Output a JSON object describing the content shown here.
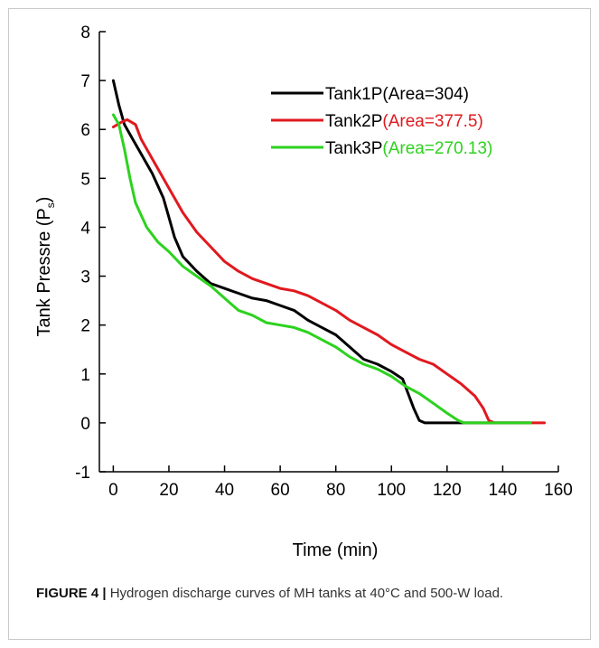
{
  "figure": {
    "caption_label": "FIGURE 4 |",
    "caption_text": "Hydrogen discharge curves of MH tanks at 40°C and 500-W load."
  },
  "chart_data": {
    "type": "line",
    "title": "",
    "xlabel": "Time (min)",
    "ylabel_main": "Tank Pressre (P",
    "ylabel_sub": "s",
    "ylabel_close": ")",
    "xlim": [
      -5,
      160
    ],
    "ylim": [
      -1,
      8
    ],
    "xticks": [
      0,
      20,
      40,
      60,
      80,
      100,
      120,
      140,
      160
    ],
    "yticks": [
      -1,
      0,
      1,
      2,
      3,
      4,
      5,
      6,
      7,
      8
    ],
    "grid": false,
    "legend_position": "top-right",
    "series": [
      {
        "name": "Tank1P",
        "area_label": "(Area=304)",
        "color": "#000000",
        "label_color": "#000000",
        "points": [
          [
            0,
            7.0
          ],
          [
            2,
            6.5
          ],
          [
            4,
            6.1
          ],
          [
            7,
            5.8
          ],
          [
            10,
            5.5
          ],
          [
            14,
            5.1
          ],
          [
            18,
            4.6
          ],
          [
            20,
            4.2
          ],
          [
            22,
            3.8
          ],
          [
            25,
            3.4
          ],
          [
            30,
            3.1
          ],
          [
            35,
            2.85
          ],
          [
            40,
            2.75
          ],
          [
            45,
            2.65
          ],
          [
            50,
            2.55
          ],
          [
            55,
            2.5
          ],
          [
            60,
            2.4
          ],
          [
            65,
            2.3
          ],
          [
            70,
            2.1
          ],
          [
            75,
            1.95
          ],
          [
            80,
            1.8
          ],
          [
            85,
            1.55
          ],
          [
            90,
            1.3
          ],
          [
            95,
            1.2
          ],
          [
            100,
            1.05
          ],
          [
            104,
            0.9
          ],
          [
            106,
            0.6
          ],
          [
            108,
            0.3
          ],
          [
            110,
            0.05
          ],
          [
            112,
            0.0
          ],
          [
            120,
            0.0
          ],
          [
            130,
            0.0
          ],
          [
            140,
            0.0
          ],
          [
            150,
            0.0
          ]
        ]
      },
      {
        "name": "Tank2P",
        "area_label": "(Area=377.5)",
        "color": "#e0191f",
        "label_color": "#e0191f",
        "points": [
          [
            0,
            6.05
          ],
          [
            3,
            6.15
          ],
          [
            5,
            6.2
          ],
          [
            8,
            6.1
          ],
          [
            10,
            5.8
          ],
          [
            15,
            5.3
          ],
          [
            20,
            4.8
          ],
          [
            25,
            4.3
          ],
          [
            30,
            3.9
          ],
          [
            35,
            3.6
          ],
          [
            40,
            3.3
          ],
          [
            45,
            3.1
          ],
          [
            50,
            2.95
          ],
          [
            55,
            2.85
          ],
          [
            60,
            2.75
          ],
          [
            65,
            2.7
          ],
          [
            70,
            2.6
          ],
          [
            75,
            2.45
          ],
          [
            80,
            2.3
          ],
          [
            85,
            2.1
          ],
          [
            90,
            1.95
          ],
          [
            95,
            1.8
          ],
          [
            100,
            1.6
          ],
          [
            105,
            1.45
          ],
          [
            110,
            1.3
          ],
          [
            115,
            1.2
          ],
          [
            120,
            1.0
          ],
          [
            125,
            0.8
          ],
          [
            130,
            0.55
          ],
          [
            133,
            0.3
          ],
          [
            135,
            0.05
          ],
          [
            137,
            0.0
          ],
          [
            145,
            0.0
          ],
          [
            150,
            0.0
          ],
          [
            155,
            0.0
          ]
        ]
      },
      {
        "name": "Tank3P",
        "area_label": "(Area=270.13)",
        "color": "#2dd21e",
        "label_color": "#2dd21e",
        "points": [
          [
            0,
            6.3
          ],
          [
            2,
            6.1
          ],
          [
            4,
            5.6
          ],
          [
            6,
            5.0
          ],
          [
            8,
            4.5
          ],
          [
            12,
            4.0
          ],
          [
            16,
            3.7
          ],
          [
            20,
            3.5
          ],
          [
            25,
            3.2
          ],
          [
            30,
            3.0
          ],
          [
            35,
            2.8
          ],
          [
            40,
            2.55
          ],
          [
            45,
            2.3
          ],
          [
            50,
            2.2
          ],
          [
            55,
            2.05
          ],
          [
            60,
            2.0
          ],
          [
            65,
            1.95
          ],
          [
            70,
            1.85
          ],
          [
            75,
            1.7
          ],
          [
            80,
            1.55
          ],
          [
            85,
            1.35
          ],
          [
            90,
            1.2
          ],
          [
            95,
            1.1
          ],
          [
            100,
            0.95
          ],
          [
            105,
            0.75
          ],
          [
            110,
            0.6
          ],
          [
            115,
            0.4
          ],
          [
            120,
            0.2
          ],
          [
            124,
            0.05
          ],
          [
            126,
            0.0
          ],
          [
            135,
            0.0
          ],
          [
            145,
            0.0
          ],
          [
            150,
            0.0
          ]
        ]
      }
    ]
  }
}
